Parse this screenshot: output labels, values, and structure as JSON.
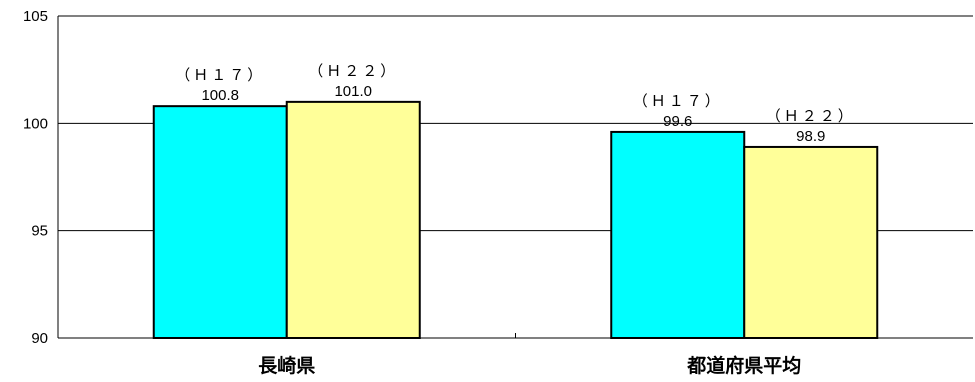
{
  "chart_data": {
    "type": "bar",
    "categories": [
      "長崎県",
      "都道府県平均"
    ],
    "series": [
      {
        "name": "（Ｈ１７）",
        "values": [
          100.8,
          99.6
        ],
        "color": "#00ffff"
      },
      {
        "name": "（Ｈ２２）",
        "values": [
          101.0,
          98.9
        ],
        "color": "#ffff99"
      }
    ],
    "value_labels": [
      [
        "100.8",
        "99.6"
      ],
      [
        "101.0",
        "98.9"
      ]
    ],
    "y_ticks": [
      "90",
      "95",
      "100",
      "105"
    ],
    "ylim": [
      90,
      105
    ],
    "grid": true,
    "legend": "none"
  }
}
